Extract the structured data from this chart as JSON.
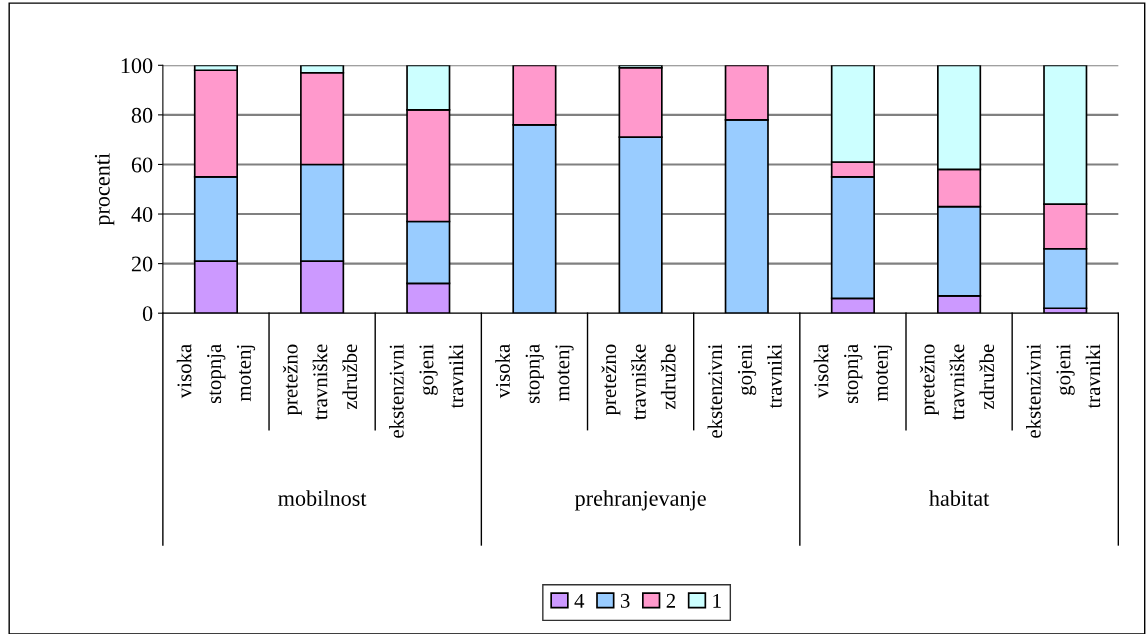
{
  "chart_data": {
    "type": "bar",
    "stacked": true,
    "ylabel": "procenti",
    "categories": [
      "visoka\nstopnja\nmotenj",
      "pretežno\ntravniške\nzdružbe",
      "ekstenzivni\ngojeni\ntravniki",
      "visoka\nstopnja\nmotenj",
      "pretežno\ntravniške\nzdružbe",
      "ekstenzivni\ngojeni\ntravniki",
      "visoka\nstopnja\nmotenj",
      "pretežno\ntravniške\nzdružbe",
      "ekstenzivni\ngojeni\ntravniki"
    ],
    "annotations": [
      "mobilnost",
      "prehranjevanje",
      "habitat"
    ],
    "series": [
      {
        "name": "4",
        "color": "#cc99ff",
        "values": [
          21,
          21,
          12,
          0,
          0,
          0,
          6,
          7,
          2
        ]
      },
      {
        "name": "3",
        "color": "#99ccff",
        "values": [
          34,
          39,
          25,
          76,
          71,
          78,
          49,
          36,
          24
        ]
      },
      {
        "name": "2",
        "color": "#ff99cc",
        "values": [
          43,
          37,
          45,
          24,
          28,
          22,
          6,
          15,
          18
        ]
      },
      {
        "name": "1",
        "color": "#ccffff",
        "values": [
          2,
          3,
          18,
          0,
          1,
          0,
          39,
          42,
          56
        ]
      }
    ],
    "ylim": [
      0,
      100
    ],
    "yticks": [
      0,
      20,
      40,
      60,
      80,
      100
    ],
    "grid": "y",
    "legend": "bottom"
  }
}
